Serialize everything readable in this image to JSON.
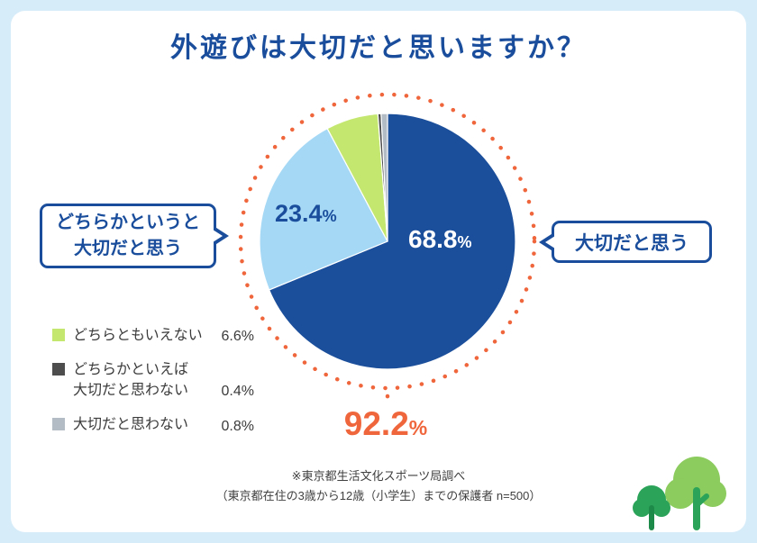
{
  "title": "外遊びは大切だと思いますか？",
  "chart_data": {
    "type": "pie",
    "title": "外遊びは大切だと思いますか？",
    "labels": [
      "大切だと思う",
      "どちらかというと大切だと思う",
      "どちらともいえない",
      "どちらかといえば大切だと思わない",
      "大切だと思わない"
    ],
    "values": [
      68.8,
      23.4,
      6.6,
      0.4,
      0.8
    ],
    "colors": [
      "#1b4e9b",
      "#a5d8f5",
      "#c3e76f",
      "#4d4d4d",
      "#b3bcc4"
    ],
    "start_angle_deg": -90,
    "direction": "clockwise",
    "combined_important_pct": 92.2,
    "legend_position": "bottom-left"
  },
  "bubbles": {
    "left_line1": "どちらかというと",
    "left_line2": "大切だと思う",
    "right": "大切だと思う"
  },
  "slice_labels": {
    "main_value": "68.8",
    "main_unit": "%",
    "secondary_value": "23.4",
    "secondary_unit": "%"
  },
  "legend": {
    "items": [
      {
        "label": "どちらともいえない",
        "value": "6.6%",
        "color": "#c3e76f"
      },
      {
        "label": "どちらかといえば\n大切だと思わない",
        "value": "0.4%",
        "color": "#4d4d4d"
      },
      {
        "label": "大切だと思わない",
        "value": "0.8%",
        "color": "#b3bcc4"
      }
    ]
  },
  "summary": {
    "value": "92.2",
    "unit": "%"
  },
  "footnote": {
    "line1": "※東京都生活文化スポーツ局調べ",
    "line2": "（東京都在住の3歳から12歳（小学生）までの保護者 n=500）"
  },
  "colors": {
    "primary_blue": "#1b4e9b",
    "light_blue": "#a5d8f5",
    "green": "#c3e76f",
    "dark_gray": "#4d4d4d",
    "light_gray": "#b3bcc4",
    "accent_orange": "#f0663c",
    "page_background": "#d7ecf9"
  }
}
